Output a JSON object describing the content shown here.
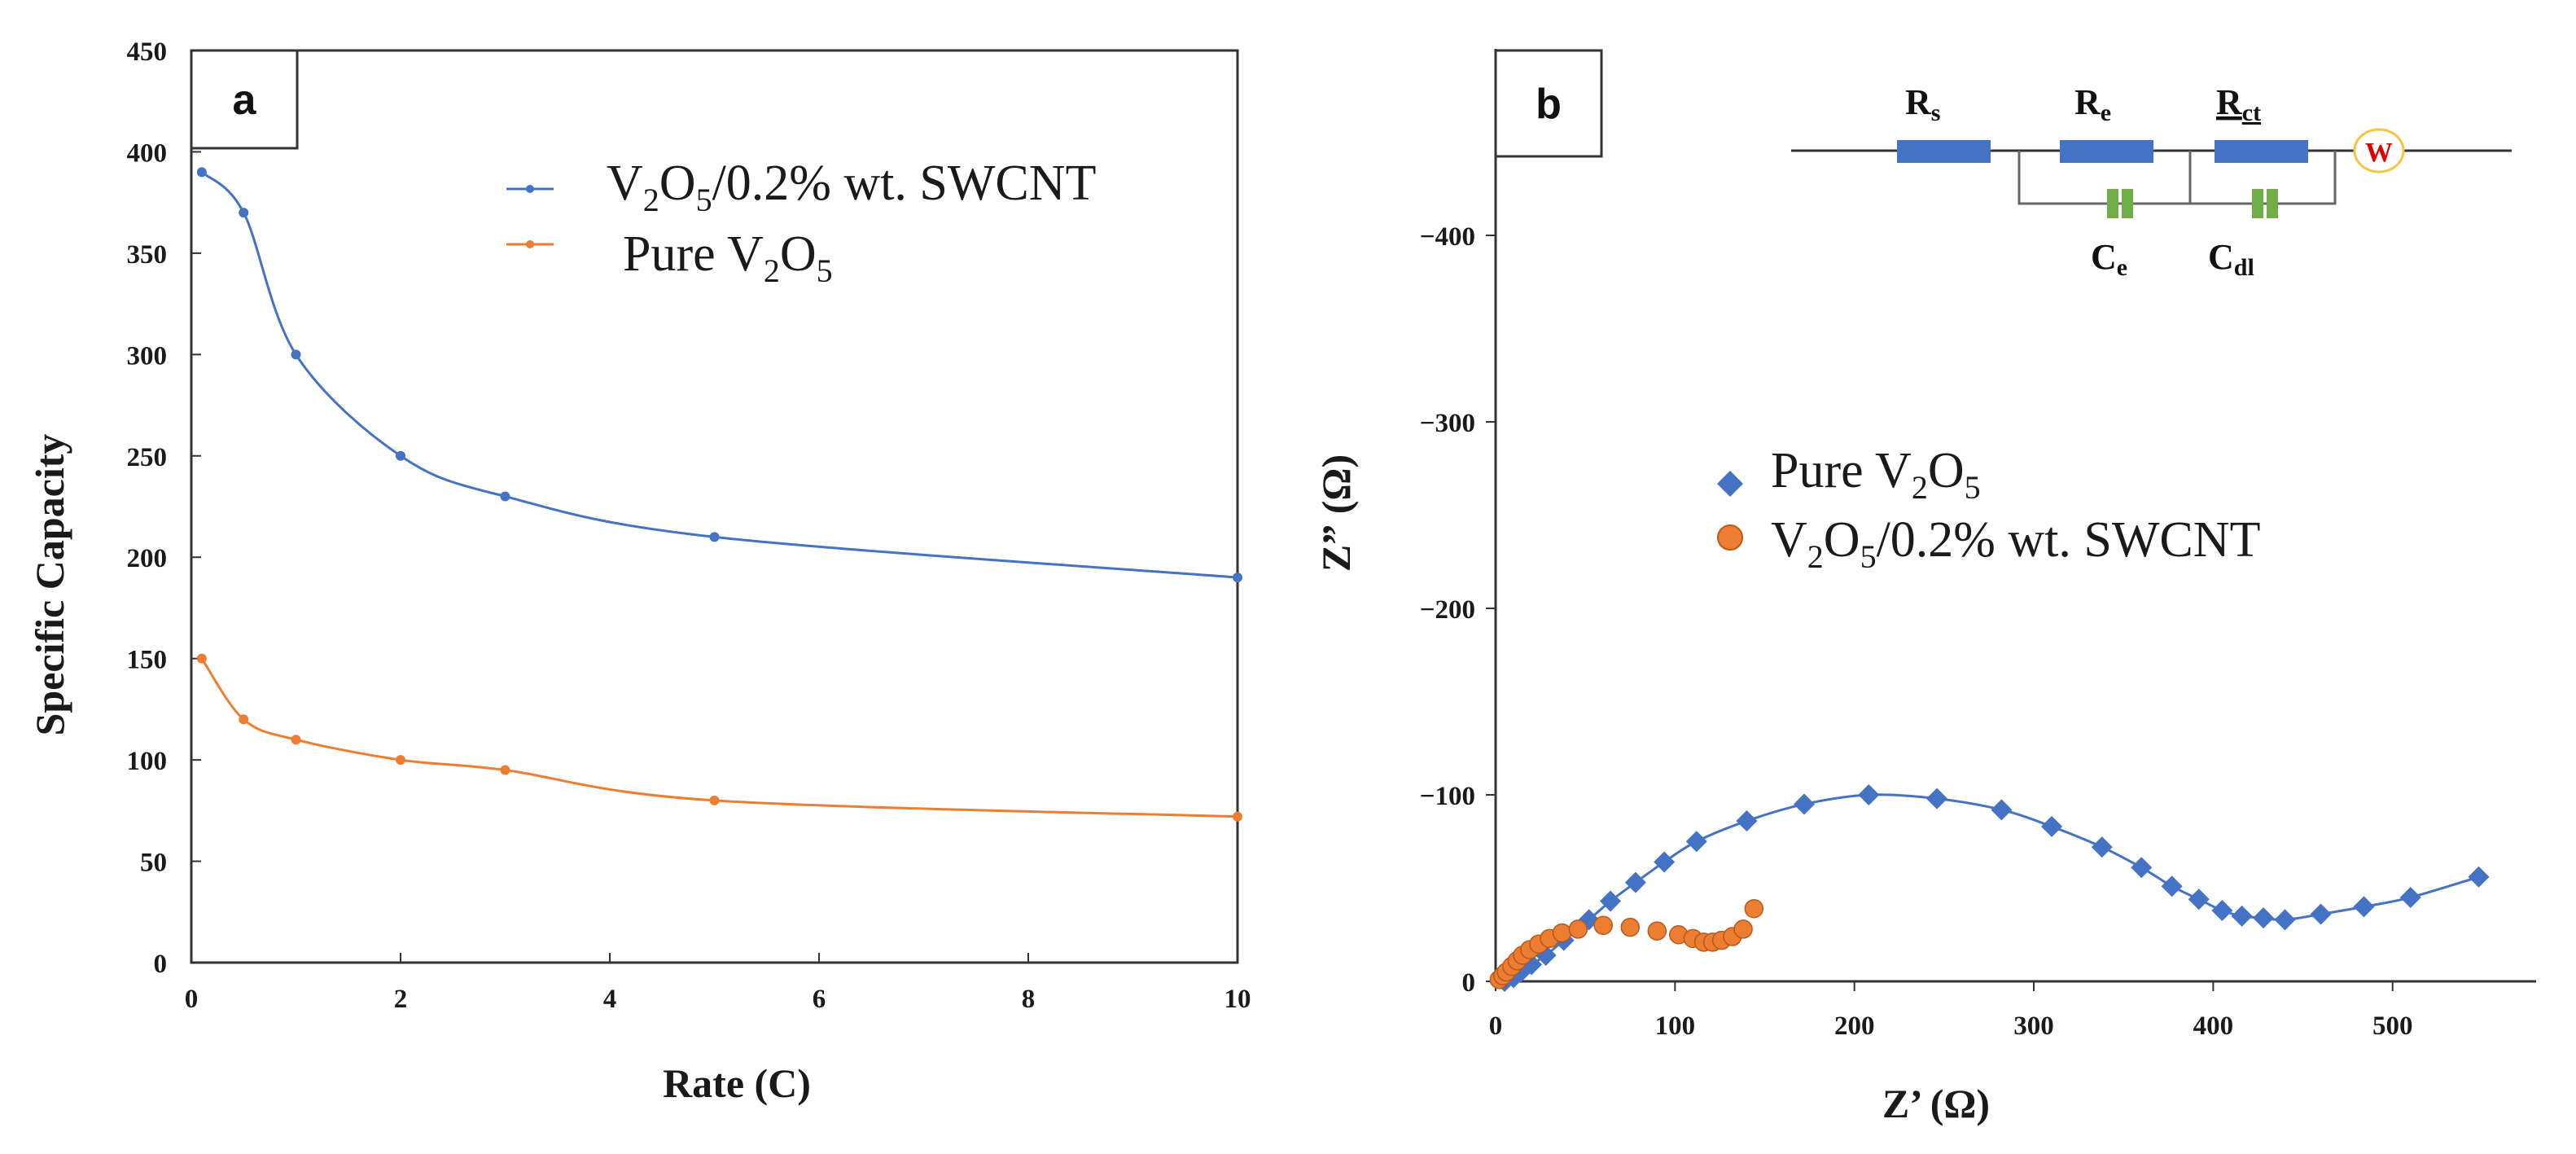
{
  "colors": {
    "blue": "#4472C4",
    "orange": "#ED7D31",
    "resistor": "#4472C4",
    "capacitor": "#70AD47",
    "warburg_stroke": "#F4C542",
    "warburg_text": "#E00000"
  },
  "chart_data": [
    {
      "panel_label": "a",
      "type": "line",
      "xlabel": "Rate (C)",
      "ylabel": "Specific Capacity",
      "xlim": [
        0,
        10
      ],
      "ylim": [
        0,
        450
      ],
      "xticks": [
        "0",
        "2",
        "4",
        "6",
        "8",
        "10"
      ],
      "yticks": [
        "0",
        "50",
        "100",
        "150",
        "200",
        "250",
        "300",
        "350",
        "400",
        "450"
      ],
      "series": [
        {
          "name": "V2O5/0.2% wt. SWCNT",
          "legend_parts": [
            "V",
            "2",
            "O",
            "5",
            "/0.2% wt. SWCNT"
          ],
          "color": "#4472C4",
          "x": [
            0.1,
            0.5,
            1,
            2,
            3,
            5,
            10
          ],
          "y": [
            390,
            370,
            300,
            250,
            230,
            210,
            190
          ]
        },
        {
          "name": "Pure V2O5",
          "legend_parts": [
            "Pure V",
            "2",
            "O",
            "5"
          ],
          "color": "#ED7D31",
          "x": [
            0.1,
            0.5,
            1,
            2,
            3,
            5,
            10
          ],
          "y": [
            150,
            120,
            110,
            100,
            95,
            80,
            72
          ]
        }
      ]
    },
    {
      "panel_label": "b",
      "type": "scatter",
      "xlabel": "Z’ (Ω)",
      "ylabel": "Z” (Ω)",
      "xlim": [
        0,
        580
      ],
      "ylim": [
        0,
        -500
      ],
      "xticks": [
        "0",
        "100",
        "200",
        "300",
        "400",
        "500"
      ],
      "yticks": [
        "0",
        "−100",
        "−200",
        "−300",
        "−400"
      ],
      "series": [
        {
          "name": "Pure V2O5",
          "legend_parts": [
            "Pure V",
            "2",
            "O",
            "5"
          ],
          "marker": "diamond",
          "color": "#4472C4",
          "x": [
            5,
            10,
            14,
            20,
            28,
            38,
            52,
            64,
            78,
            94,
            112,
            140,
            172,
            208,
            246,
            282,
            310,
            338,
            360,
            377,
            392,
            405,
            416,
            428,
            440,
            460,
            484,
            510,
            548
          ],
          "y": [
            0,
            -2,
            -5,
            -9,
            -14,
            -22,
            -33,
            -43,
            -53,
            -64,
            -75,
            -86,
            -95,
            -100,
            -98,
            -92,
            -83,
            -72,
            -61,
            -51,
            -44,
            -38,
            -35,
            -34,
            -33,
            -36,
            -40,
            -45,
            -56
          ]
        },
        {
          "name": "V2O5/0.2% wt. SWCNT",
          "legend_parts": [
            "V",
            "2",
            "O",
            "5",
            "/0.2% wt. SWCNT"
          ],
          "marker": "circle",
          "color": "#ED7D31",
          "x": [
            2,
            4,
            6,
            9,
            12,
            15,
            19,
            24,
            30,
            37,
            46,
            60,
            75,
            90,
            102,
            110,
            116,
            121,
            126,
            132,
            138,
            144
          ],
          "y": [
            -1,
            -3,
            -5,
            -8,
            -11,
            -14,
            -17,
            -20,
            -23,
            -26,
            -28,
            -30,
            -29,
            -27,
            -25,
            -23,
            -21,
            -21,
            -22,
            -24,
            -28,
            -39
          ]
        }
      ],
      "circuit": {
        "resistors": [
          "R",
          "s",
          "R",
          "e",
          "R",
          "ct"
        ],
        "capacitors": [
          "C",
          "e",
          "C",
          "dl"
        ],
        "warburg": "W"
      }
    }
  ]
}
